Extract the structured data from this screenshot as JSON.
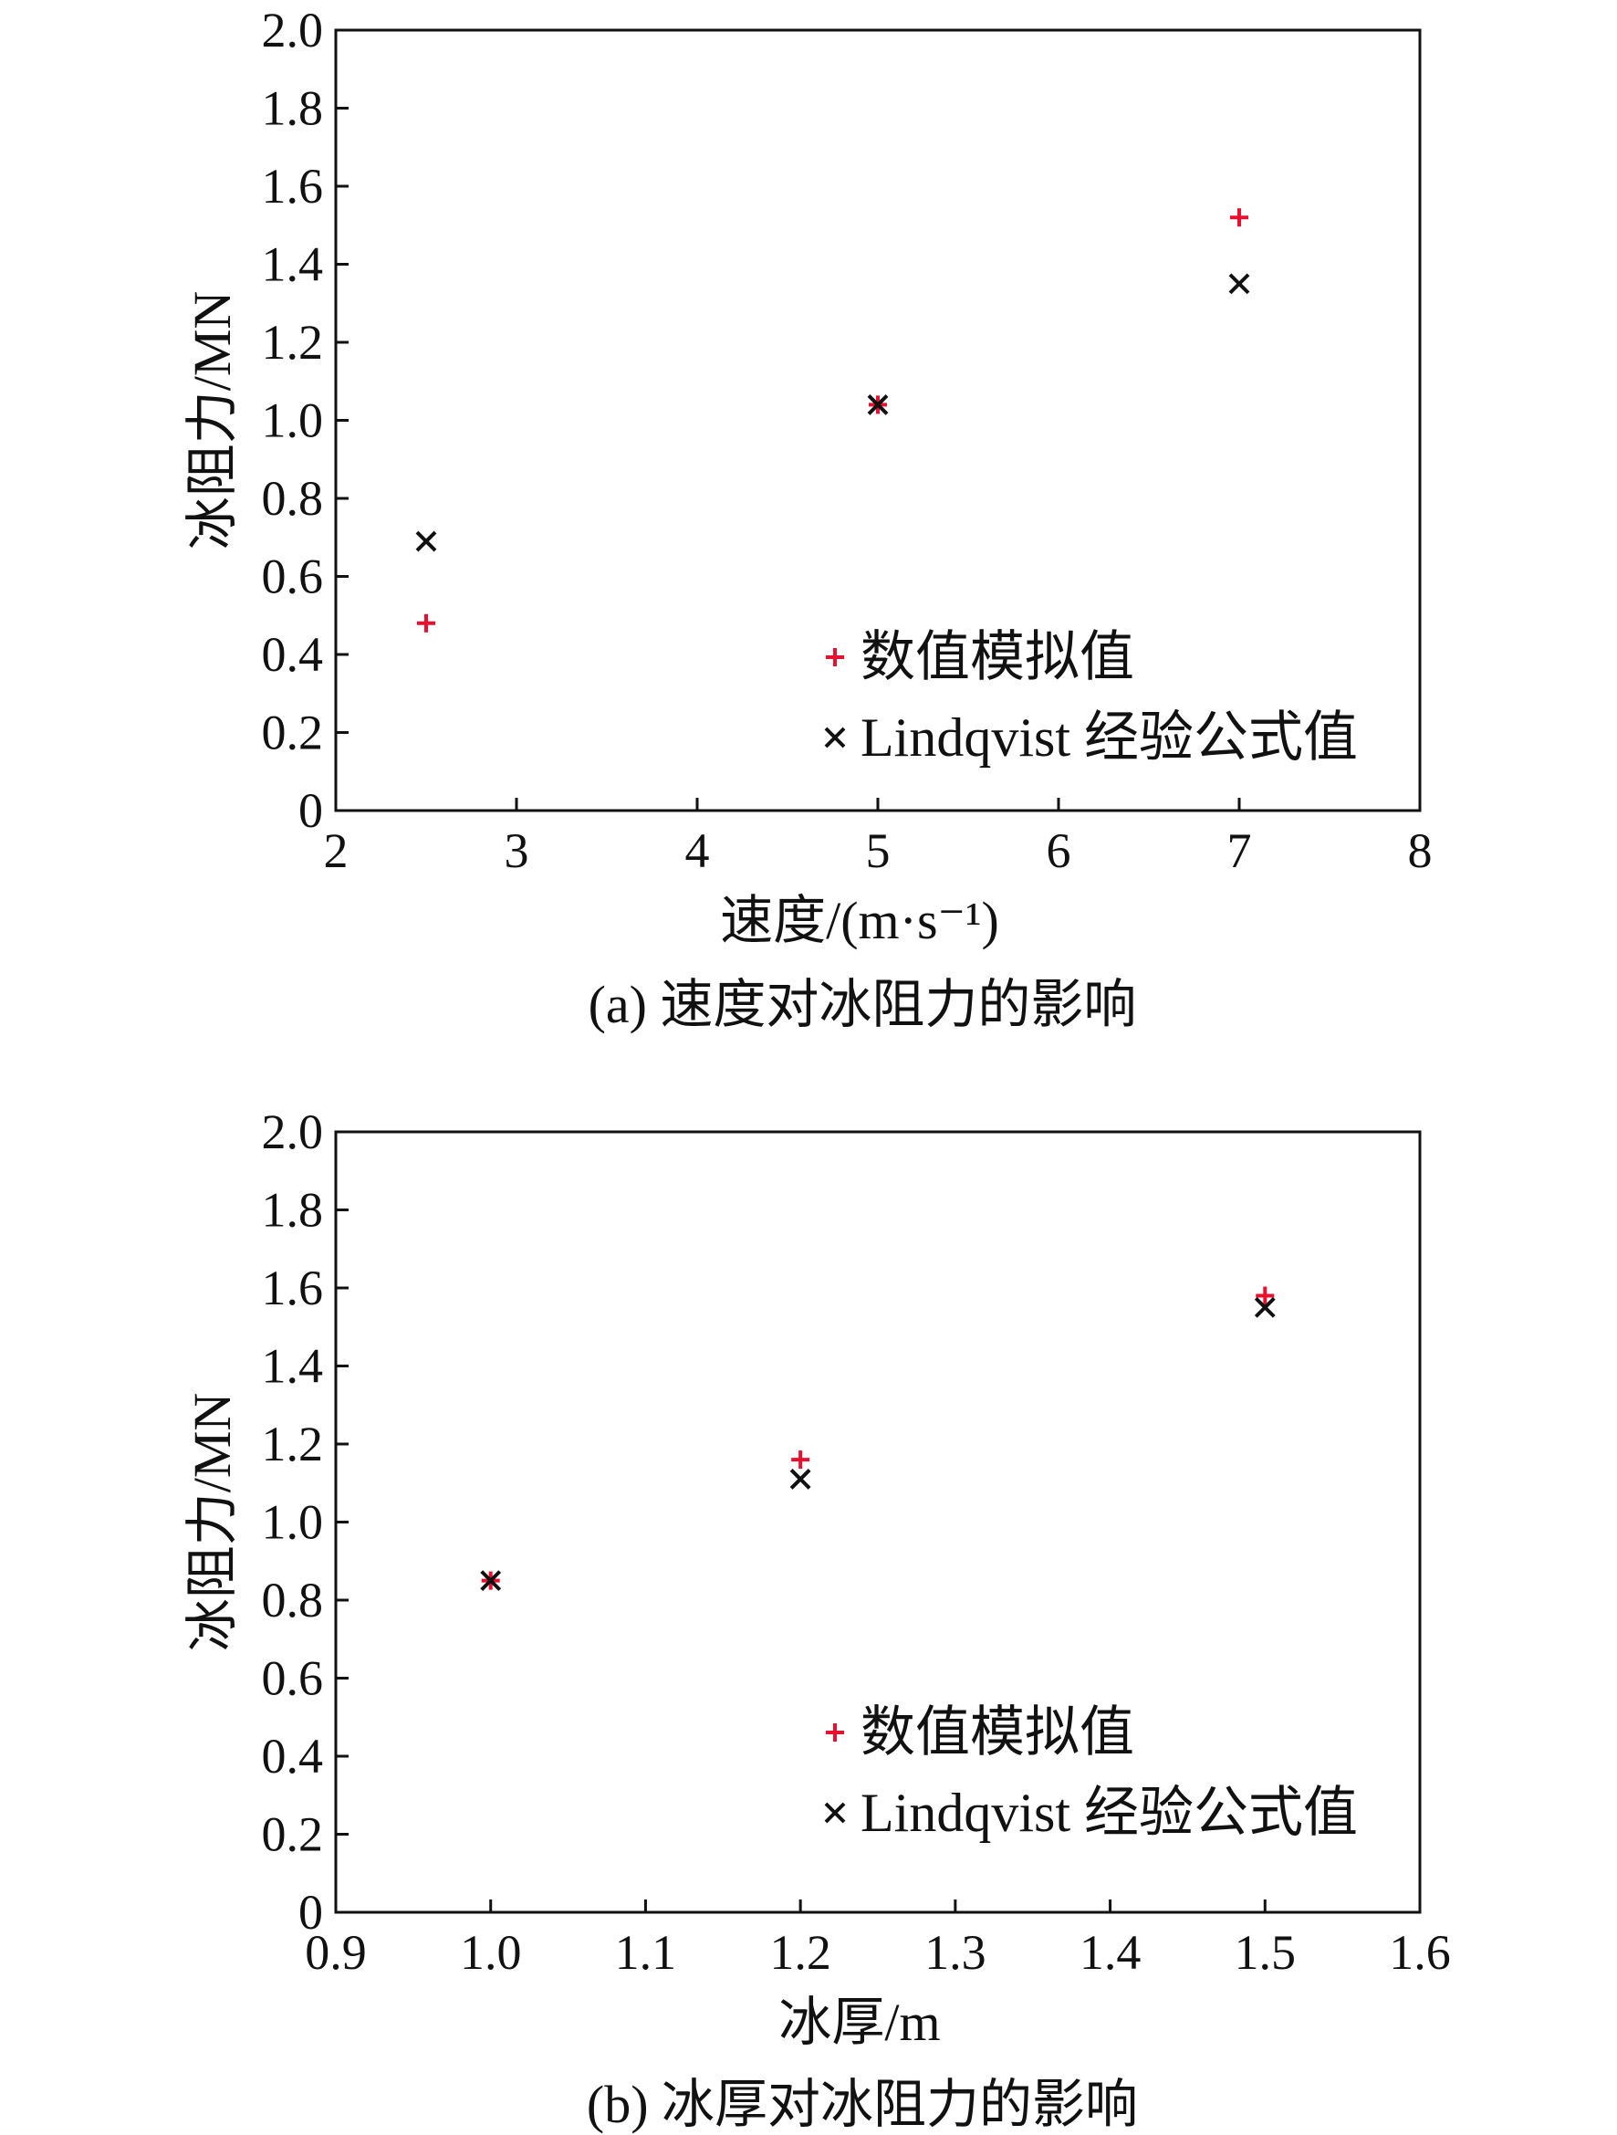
{
  "colors": {
    "sim": "#e8102e",
    "emp": "#111111",
    "axis": "#111111"
  },
  "chart_data": [
    {
      "type": "scatter",
      "caption": "(a) 速度对冰阻力的影响",
      "xlabel": "速度/(m·s⁻¹)",
      "ylabel": "冰阻力/MN",
      "xlim": [
        2,
        8
      ],
      "ylim": [
        0,
        2.0
      ],
      "x_ticks": [
        2,
        3,
        4,
        5,
        6,
        7,
        8
      ],
      "x_tick_labels": [
        "2",
        "3",
        "4",
        "5",
        "6",
        "7",
        "8"
      ],
      "y_ticks": [
        0,
        0.2,
        0.4,
        0.6,
        0.8,
        1.0,
        1.2,
        1.4,
        1.6,
        1.8,
        2.0
      ],
      "y_tick_labels": [
        "0",
        "0.2",
        "0.4",
        "0.6",
        "0.8",
        "1.0",
        "1.2",
        "1.4",
        "1.6",
        "1.8",
        "2.0"
      ],
      "legend_position": "bottom-right",
      "series": [
        {
          "name": "数值模拟值",
          "marker": "plus",
          "color": "#e8102e",
          "x": [
            2.5,
            5.0,
            7.0
          ],
          "y": [
            0.48,
            1.04,
            1.52
          ]
        },
        {
          "name": "Lindqvist 经验公式值",
          "marker": "cross",
          "color": "#111111",
          "x": [
            2.5,
            5.0,
            7.0
          ],
          "y": [
            0.69,
            1.04,
            1.35
          ]
        }
      ]
    },
    {
      "type": "scatter",
      "caption": "(b) 冰厚对冰阻力的影响",
      "xlabel": "冰厚/m",
      "ylabel": "冰阻力/MN",
      "xlim": [
        0.9,
        1.6
      ],
      "ylim": [
        0,
        2.0
      ],
      "x_ticks": [
        0.9,
        1.0,
        1.1,
        1.2,
        1.3,
        1.4,
        1.5,
        1.6
      ],
      "x_tick_labels": [
        "0.9",
        "1.0",
        "1.1",
        "1.2",
        "1.3",
        "1.4",
        "1.5",
        "1.6"
      ],
      "y_ticks": [
        0,
        0.2,
        0.4,
        0.6,
        0.8,
        1.0,
        1.2,
        1.4,
        1.6,
        1.8,
        2.0
      ],
      "y_tick_labels": [
        "0",
        "0.2",
        "0.4",
        "0.6",
        "0.8",
        "1.0",
        "1.2",
        "1.4",
        "1.6",
        "1.8",
        "2.0"
      ],
      "legend_position": "bottom-right",
      "series": [
        {
          "name": "数值模拟值",
          "marker": "plus",
          "color": "#e8102e",
          "x": [
            1.0,
            1.2,
            1.5
          ],
          "y": [
            0.85,
            1.16,
            1.58
          ]
        },
        {
          "name": "Lindqvist 经验公式值",
          "marker": "cross",
          "color": "#111111",
          "x": [
            1.0,
            1.2,
            1.5
          ],
          "y": [
            0.85,
            1.11,
            1.55
          ]
        }
      ]
    }
  ]
}
